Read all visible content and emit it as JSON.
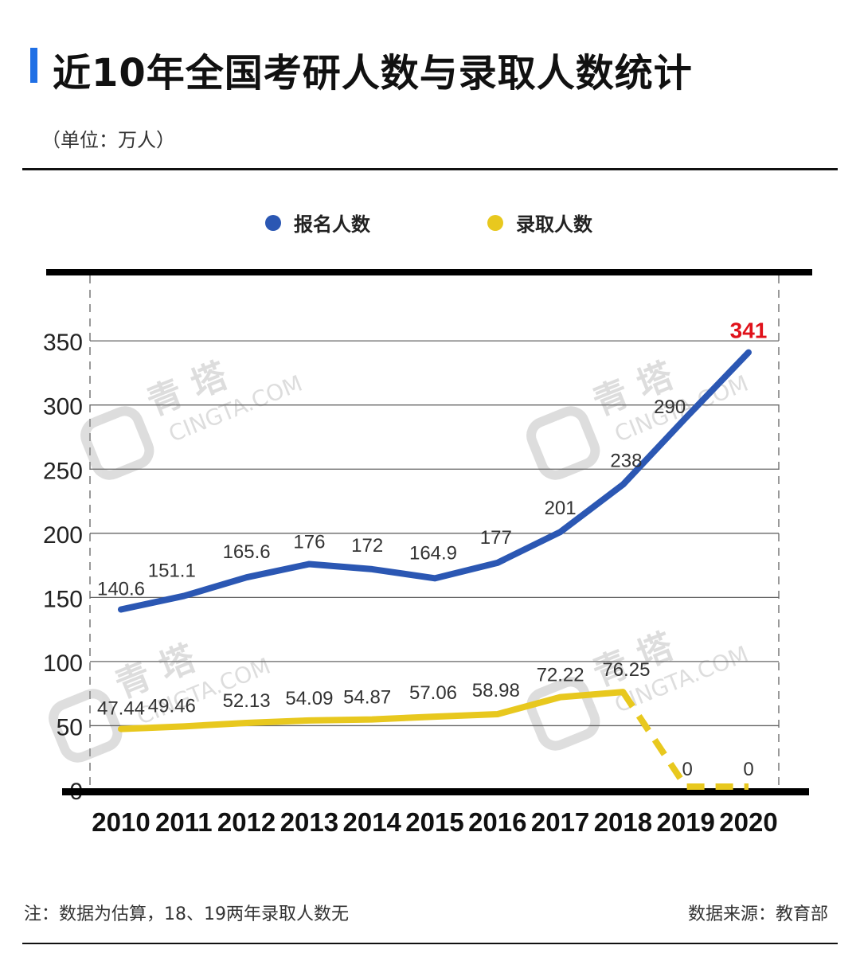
{
  "header": {
    "title": "近10年全国考研人数与录取人数统计",
    "unit": "（单位：万人）"
  },
  "legend": [
    {
      "label": "报名人数",
      "color": "#2b57b3"
    },
    {
      "label": "录取人数",
      "color": "#e8c81e"
    }
  ],
  "footer": {
    "note": "注：数据为估算，18、19两年录取人数无",
    "source": "数据来源：教育部"
  },
  "watermark": {
    "text_cn": "青 塔",
    "text_en": "CINGTA.COM"
  },
  "colors": {
    "accent": "#1f6fe5",
    "applicants": "#2b57b3",
    "admitted": "#e8c81e",
    "highlight": "#e0121b",
    "grid": "#666666"
  },
  "chart_data": {
    "type": "line",
    "categories": [
      "2010",
      "2011",
      "2012",
      "2013",
      "2014",
      "2015",
      "2016",
      "2017",
      "2018",
      "2019",
      "2020"
    ],
    "series": [
      {
        "name": "报名人数",
        "values": [
          140.6,
          151.1,
          165.6,
          176,
          172,
          164.9,
          177,
          201,
          238,
          290,
          341
        ],
        "labels": [
          "140.6",
          "151.1",
          "165.6",
          "176",
          "172",
          "164.9",
          "177",
          "201",
          "238",
          "290",
          "341"
        ]
      },
      {
        "name": "录取人数",
        "values": [
          47.44,
          49.46,
          52.13,
          54.09,
          54.87,
          57.06,
          58.98,
          72.22,
          76.25,
          0,
          0
        ],
        "labels": [
          "47.44",
          "49.46",
          "52.13",
          "54.09",
          "54.87",
          "57.06",
          "58.98",
          "72.22",
          "76.25",
          "0",
          "0"
        ],
        "dashed_from_index": 8
      }
    ],
    "yticks": [
      0,
      50,
      100,
      150,
      200,
      250,
      300,
      350
    ],
    "ylim": [
      0,
      400
    ],
    "grid": true,
    "legend_position": "top-center",
    "highlight_label": "341"
  }
}
